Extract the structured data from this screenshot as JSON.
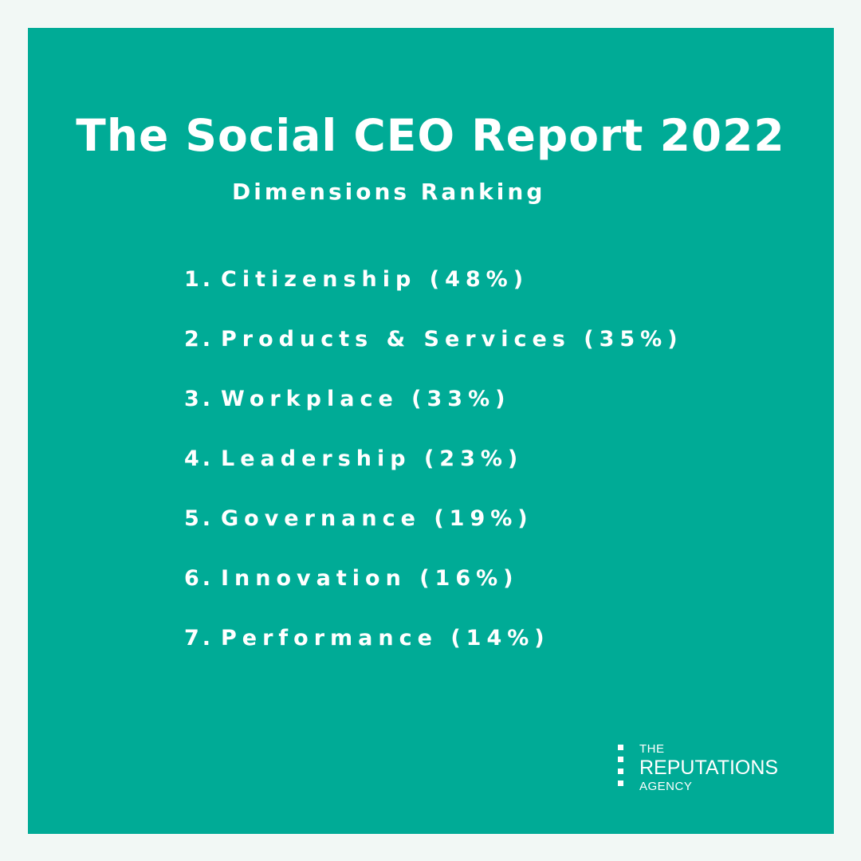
{
  "title": "The Social CEO Report 2022",
  "subtitle": "Dimensions Ranking",
  "ranking": [
    {
      "number": "1.",
      "text": "Citizenship (48%)"
    },
    {
      "number": "2.",
      "text": "Products & Services (35%)"
    },
    {
      "number": "3.",
      "text": "Workplace (33%)"
    },
    {
      "number": "4.",
      "text": "Leadership (23%)"
    },
    {
      "number": "5.",
      "text": "Governance (19%)"
    },
    {
      "number": "6.",
      "text": "Innovation (16%)"
    },
    {
      "number": "7.",
      "text": "Performance (14%)"
    }
  ],
  "logo": {
    "line1": "THE",
    "line2": "REPUTATIONS",
    "line3": "AGENCY"
  },
  "colors": {
    "background": "#f2f8f5",
    "panel": "#00ab96",
    "text": "#ffffff"
  }
}
